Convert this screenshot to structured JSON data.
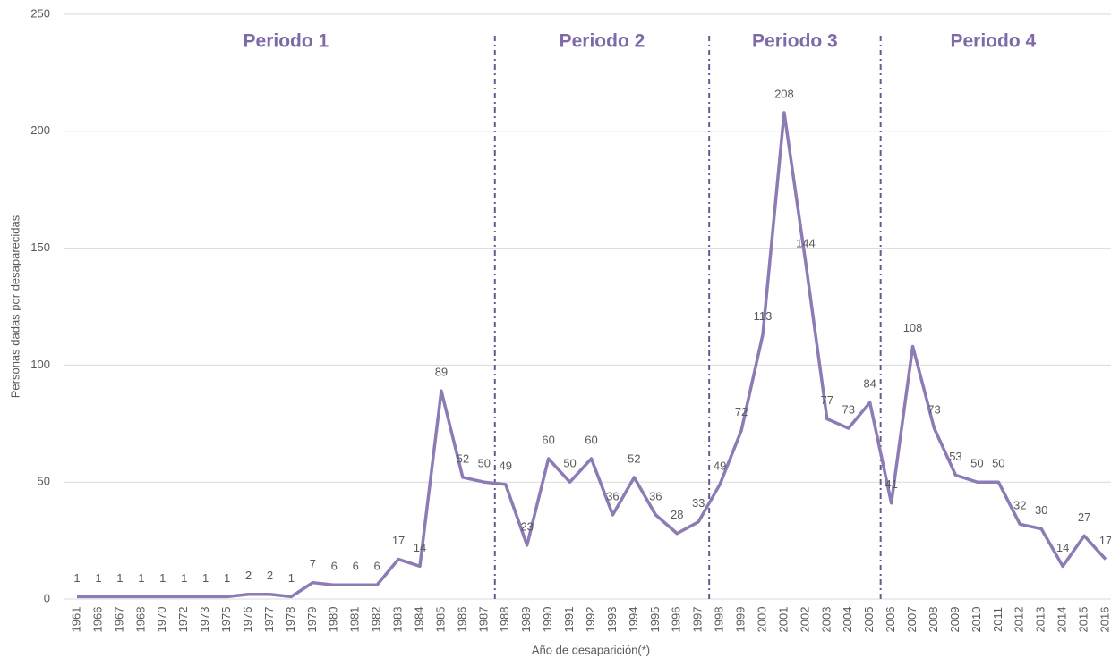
{
  "chart_data": {
    "type": "line",
    "y_label": "Personas dadas por desaparecidas",
    "x_label": "Año de desaparición(*)",
    "categories": [
      "1961",
      "1966",
      "1967",
      "1968",
      "1970",
      "1972",
      "1973",
      "1975",
      "1976",
      "1977",
      "1978",
      "1979",
      "1980",
      "1981",
      "1982",
      "1983",
      "1984",
      "1985",
      "1986",
      "1987",
      "1988",
      "1989",
      "1990",
      "1991",
      "1992",
      "1993",
      "1994",
      "1995",
      "1996",
      "1997",
      "1998",
      "1999",
      "2000",
      "2001",
      "2002",
      "2003",
      "2004",
      "2005",
      "2006",
      "2007",
      "2008",
      "2009",
      "2010",
      "2011",
      "2012",
      "2013",
      "2014",
      "2015",
      "2016"
    ],
    "series": [
      {
        "name": "Personas",
        "color": "#8c7bb4",
        "values": [
          1,
          1,
          1,
          1,
          1,
          1,
          1,
          1,
          2,
          2,
          1,
          7,
          6,
          6,
          6,
          17,
          14,
          89,
          52,
          50,
          49,
          23,
          60,
          50,
          60,
          36,
          52,
          36,
          28,
          33,
          49,
          72,
          113,
          208,
          144,
          77,
          73,
          84,
          41,
          108,
          73,
          53,
          50,
          50,
          32,
          30,
          14,
          27,
          17
        ]
      }
    ],
    "ylim": [
      0,
      250
    ],
    "yticks": [
      0,
      50,
      100,
      150,
      200,
      250
    ],
    "grid": true,
    "periods": [
      {
        "label": "Periodo 1",
        "start": "1961",
        "end": "1987"
      },
      {
        "label": "Periodo 2",
        "start": "1988",
        "end": "1997"
      },
      {
        "label": "Periodo 3",
        "start": "1998",
        "end": "2005"
      },
      {
        "label": "Periodo 4",
        "start": "2006",
        "end": "2016"
      }
    ]
  }
}
